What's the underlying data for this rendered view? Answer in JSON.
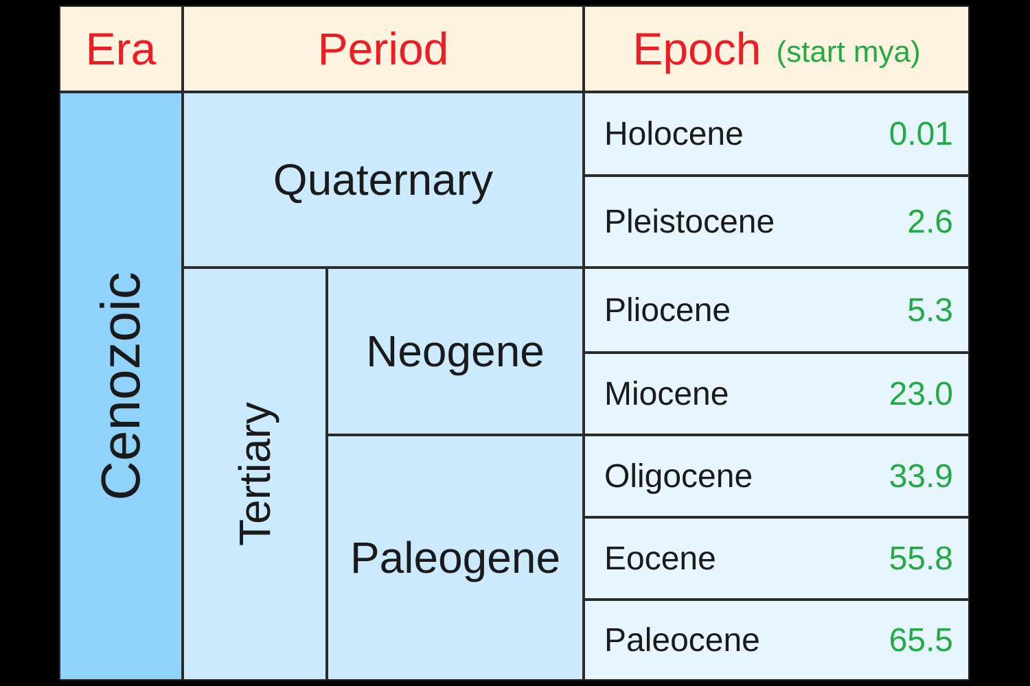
{
  "header": {
    "era": "Era",
    "period": "Period",
    "epoch": "Epoch",
    "epoch_sub": "(start mya)"
  },
  "era": {
    "name": "Cenozoic"
  },
  "periods": {
    "quaternary": "Quaternary",
    "tertiary": "Tertiary",
    "neogene": "Neogene",
    "paleogene": "Paleogene"
  },
  "epochs": [
    {
      "name": "Holocene",
      "start": "0.01"
    },
    {
      "name": "Pleistocene",
      "start": "2.6"
    },
    {
      "name": "Pliocene",
      "start": "5.3"
    },
    {
      "name": "Miocene",
      "start": "23.0"
    },
    {
      "name": "Oligocene",
      "start": "33.9"
    },
    {
      "name": "Eocene",
      "start": "55.8"
    },
    {
      "name": "Paleocene",
      "start": "65.5"
    }
  ],
  "colors": {
    "header_bg": "#fdf3de",
    "header_text": "#ee1c24",
    "value_text": "#22aa44",
    "era_bg": "#8fd3fb",
    "period_bg": "#cbeafd",
    "epoch_bg": "#e6f5fe"
  }
}
